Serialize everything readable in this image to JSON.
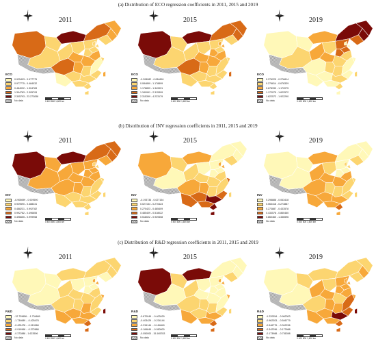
{
  "sections": [
    {
      "title": "(a) Distribution of ECO regression coefficients in 2011, 2015 and 2019",
      "maps": [
        {
          "year": "2011",
          "legend_title": "ECO",
          "colors": [
            "#FFF8B8",
            "#FCD570",
            "#F7A83A",
            "#D86A17",
            "#7A0B08"
          ],
          "ranges": [
            "0.925493 - 0.977775",
            "0.977775 - 0.484032",
            "0.484032 - 1.304783",
            "1.304783 - 2.305793",
            "2.305793 - 23.272838"
          ],
          "fills": [
            3,
            1,
            4,
            3,
            2,
            2,
            1,
            1,
            1,
            1,
            1,
            1,
            1,
            2,
            2,
            2,
            3,
            2,
            1,
            0,
            1,
            1,
            1,
            0,
            1,
            1,
            1,
            1,
            1,
            1,
            2
          ]
        },
        {
          "year": "2015",
          "legend_title": "ECO",
          "colors": [
            "#FFF8B8",
            "#FCD570",
            "#F7A83A",
            "#D86A17",
            "#7A0B08"
          ],
          "ranges": [
            "-0.208082 - 0.084899",
            "0.084899 - 1.178899",
            "1.178899 - 1.349991",
            "1.349991 - 2.315399",
            "2.315399 - 4.223179"
          ],
          "fills": [
            4,
            1,
            4,
            3,
            3,
            3,
            1,
            1,
            1,
            1,
            1,
            1,
            2,
            2,
            2,
            2,
            3,
            2,
            1,
            1,
            1,
            1,
            1,
            1,
            1,
            1,
            1,
            1,
            2,
            2,
            3
          ]
        },
        {
          "year": "2019",
          "legend_title": "ECO",
          "colors": [
            "#FFF8B8",
            "#FCD570",
            "#F7A83A",
            "#D86A17",
            "#7A0B08"
          ],
          "ranges": [
            "0.276225 - 0.276814",
            "0.276814 - 0.678339",
            "0.678339 - 1.172075",
            "1.172075 - 1.622572",
            "1.622572 - 1.922290"
          ],
          "fills": [
            0,
            0,
            2,
            4,
            4,
            4,
            3,
            1,
            2,
            1,
            3,
            3,
            3,
            2,
            1,
            1,
            0,
            1,
            1,
            0,
            0,
            1,
            0,
            0,
            0,
            1,
            0,
            0,
            0,
            0,
            1
          ]
        }
      ]
    },
    {
      "title": "(b) Distribution of INV regression coefficients in 2011, 2015 and 2019",
      "maps": [
        {
          "year": "2011",
          "legend_title": "INV",
          "colors": [
            "#FFF8B8",
            "#FCD570",
            "#F7A83A",
            "#D86A17",
            "#7A0B08"
          ],
          "ranges": [
            "-6.905699 - 0.929590",
            "0.929590 - 0.488231",
            "0.488231 - 0.992782",
            "0.992782 - 0.496655",
            "0.496655 - 0.999958"
          ],
          "fills": [
            4,
            2,
            4,
            3,
            3,
            3,
            2,
            2,
            2,
            2,
            2,
            2,
            2,
            2,
            2,
            2,
            2,
            2,
            1,
            1,
            1,
            1,
            1,
            1,
            1,
            1,
            1,
            1,
            1,
            1,
            1
          ]
        },
        {
          "year": "2015",
          "legend_title": "INV",
          "colors": [
            "#FFF8B8",
            "#FCD570",
            "#F7A83A",
            "#D86A17",
            "#7A0B08"
          ],
          "ranges": [
            "-0.193736 - 0.027154",
            "0.027154 - 0.270423",
            "0.270423 - 0.485409",
            "0.485409 - 0.518022",
            "0.518022 - 0.939308"
          ],
          "fills": [
            2,
            1,
            2,
            0,
            0,
            0,
            1,
            0,
            1,
            0,
            0,
            0,
            0,
            1,
            1,
            1,
            2,
            2,
            1,
            1,
            3,
            4,
            3,
            3,
            3,
            4,
            4,
            3,
            2,
            2,
            1
          ]
        },
        {
          "year": "2019",
          "legend_title": "INV",
          "colors": [
            "#FFF8B8",
            "#FCD570",
            "#F7A83A",
            "#D86A17",
            "#7A0B08"
          ],
          "ranges": [
            "0.298888 - 0.063418",
            "0.063418 - 0.273887",
            "0.273887 - 0.433578",
            "0.433578 - 0.860460",
            "0.860460 - 1.336596"
          ],
          "fills": [
            0,
            0,
            2,
            0,
            0,
            0,
            1,
            0,
            2,
            1,
            0,
            0,
            0,
            2,
            2,
            2,
            2,
            1,
            1,
            1,
            1,
            2,
            2,
            2,
            2,
            3,
            2,
            1,
            1,
            1,
            1
          ]
        }
      ]
    },
    {
      "title": "(c) Distribution of R&D regression coefficients in 2011, 2015 and 2019",
      "maps": [
        {
          "year": "2011",
          "legend_title": "R&D",
          "colors": [
            "#FFF8B8",
            "#FCD570",
            "#F7A83A",
            "#D86A17",
            "#7A0B08"
          ],
          "ranges": [
            "-12.739656 - -1.734689",
            "-1.734689 - -0.425478",
            "-0.425478 - -0.919968",
            "-0.919968 - -0.372888",
            "-0.372888 - 1.623506"
          ],
          "fills": [
            0,
            0,
            1,
            1,
            1,
            1,
            0,
            0,
            1,
            0,
            0,
            0,
            0,
            1,
            1,
            1,
            1,
            1,
            2,
            1,
            1,
            2,
            2,
            2,
            2,
            3,
            3,
            2,
            2,
            2,
            4
          ]
        },
        {
          "year": "2015",
          "legend_title": "R&D",
          "colors": [
            "#FFF8B8",
            "#FCD570",
            "#F7A83A",
            "#D86A17",
            "#7A0B08"
          ],
          "ranges": [
            "-0.870049 - -0.403429",
            "-0.403429 - -0.234144",
            "-0.234144 - -0.184849",
            "-0.184849 - -0.050000",
            "-0.050000 - 15.165783"
          ],
          "fills": [
            4,
            1,
            4,
            0,
            0,
            0,
            1,
            0,
            1,
            0,
            0,
            0,
            0,
            0,
            0,
            0,
            1,
            1,
            1,
            0,
            1,
            2,
            1,
            2,
            2,
            3,
            3,
            2,
            2,
            2,
            1
          ]
        },
        {
          "year": "2019",
          "legend_title": "R&D",
          "colors": [
            "#FFF8B8",
            "#FCD570",
            "#F7A83A",
            "#D86A17",
            "#7A0B08"
          ],
          "ranges": [
            "-1.220354 - -0.962303",
            "-0.962303 - -0.546779",
            "-0.546779 - -0.342296",
            "-0.342296 - -0.173988",
            "-0.173988 - -0.736398"
          ],
          "fills": [
            0,
            1,
            1,
            1,
            1,
            2,
            1,
            0,
            2,
            1,
            2,
            2,
            2,
            2,
            2,
            1,
            1,
            2,
            2,
            3,
            3,
            4,
            2,
            2,
            2,
            3,
            3,
            2,
            2,
            2,
            4
          ]
        }
      ]
    }
  ],
  "no_data_label": "No data",
  "no_data_color": "#bdbdbd",
  "outline_color": "#ffffff",
  "scale_label": "0   400   800       1,600 km",
  "icons": {
    "north_arrow": "compass-star-icon"
  }
}
